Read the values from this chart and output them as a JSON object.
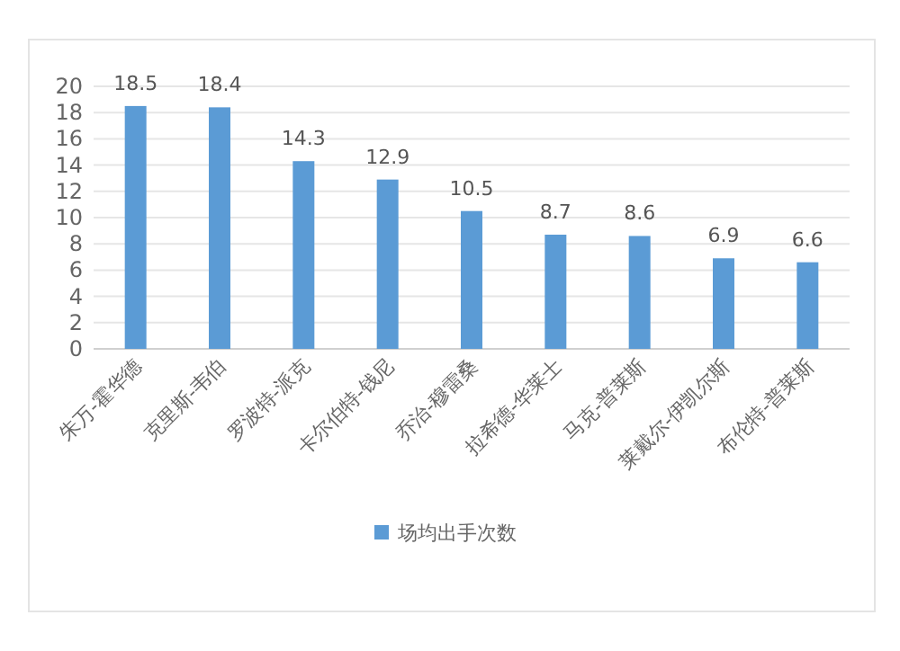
{
  "chart_data": {
    "type": "bar",
    "categories": [
      "朱万-霍华德",
      "克里斯-韦伯",
      "罗波特-派克",
      "卡尔伯特-钱尼",
      "乔治-穆雷桑",
      "拉希德-华莱士",
      "马克-普莱斯",
      "莱戴尔-伊凯尔斯",
      "布伦特-普莱斯"
    ],
    "series": [
      {
        "name": "场均出手次数",
        "color": "#5b9bd5",
        "values": [
          18.5,
          18.4,
          14.3,
          12.9,
          10.5,
          8.7,
          8.6,
          6.9,
          6.6
        ]
      }
    ],
    "ylim": [
      0,
      20
    ],
    "yticks": [
      0,
      2,
      4,
      6,
      8,
      10,
      12,
      14,
      16,
      18,
      20
    ],
    "grid": "y",
    "legend": "bottom",
    "data_labels": true
  }
}
